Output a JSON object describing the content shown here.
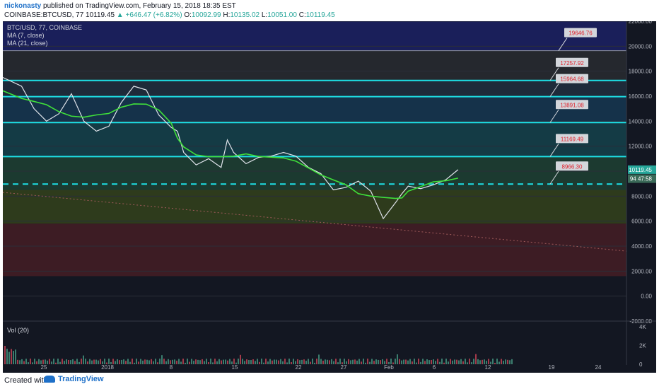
{
  "header": {
    "author": "nickonasty",
    "published": " published on TradingView.com, February 15, 2018 18:35 EST",
    "symbol": "COINBASE:BTCUSD, 77",
    "last": "10119.45",
    "change": "▲ +646.47 (+6.82%)",
    "o_label": "O:",
    "o_val": "10092.99",
    "h_label": "H:",
    "h_val": "10135.02",
    "l_label": "L:",
    "l_val": "10051.00",
    "c_label": "C:",
    "c_val": "10119.45"
  },
  "legend": {
    "title": "BTC/USD, 77, COINBASE",
    "ma7": "MA (7, close)",
    "ma21": "MA (21, close)",
    "vol": "Vol (20)"
  },
  "footer": {
    "created": "Created with",
    "brand": "TradingView"
  },
  "chart_data": {
    "type": "line",
    "title": "BTC/USD, 77, COINBASE",
    "xlabel": "",
    "ylabel": "",
    "ylim": [
      -2000,
      22000
    ],
    "x_ticks": [
      "25",
      "2018",
      "8",
      "15",
      "22",
      "27",
      "Feb",
      "6",
      "12",
      "19",
      "24"
    ],
    "y_ticks": [
      "22000.00",
      "20000.00",
      "18000.00",
      "16000.00",
      "14000.00",
      "12000.00",
      "10000.00",
      "8000.00",
      "6000.00",
      "4000.00",
      "2000.00",
      "0.00",
      "-2000.00"
    ],
    "volume_ticks": [
      "4K",
      "2K",
      "0"
    ],
    "price_series": {
      "name": "BTC/USD",
      "x": [
        0,
        3,
        5,
        7,
        9,
        11,
        13,
        15,
        17,
        19,
        21,
        23,
        25,
        27,
        28,
        29,
        31,
        33,
        35,
        36,
        37,
        39,
        41,
        43,
        45,
        47,
        49,
        51,
        53,
        55,
        57,
        59,
        61,
        63,
        64,
        65,
        67,
        69,
        71,
        73
      ],
      "y": [
        17500,
        16800,
        15000,
        14000,
        14600,
        16200,
        14000,
        13200,
        13600,
        15500,
        16800,
        16500,
        14500,
        13500,
        13200,
        11500,
        10500,
        11000,
        10300,
        12500,
        11500,
        10600,
        11100,
        11200,
        11500,
        11200,
        10300,
        9800,
        8500,
        8700,
        9200,
        8400,
        6200,
        7500,
        8200,
        8800,
        8600,
        8900,
        9300,
        10119
      ]
    },
    "horizontal_levels": [
      {
        "value": 19646.76,
        "label": "19646.76",
        "style": "thin"
      },
      {
        "value": 17257.92,
        "label": "17257.92",
        "style": "solid"
      },
      {
        "value": 15964.68,
        "label": "15964.68",
        "style": "solid"
      },
      {
        "value": 13891.08,
        "label": "13891.08",
        "style": "solid"
      },
      {
        "value": 11169.49,
        "label": "11169.49",
        "style": "solid"
      },
      {
        "value": 8966.3,
        "label": "8966.30",
        "style": "dashed"
      }
    ],
    "bands": [
      {
        "from": 19646.76,
        "to": 22000,
        "color": "#1a1f5a"
      },
      {
        "from": 17257.92,
        "to": 19646.76,
        "color": "#25282e"
      },
      {
        "from": 15964.68,
        "to": 17257.92,
        "color": "#1e2a3a"
      },
      {
        "from": 13891.08,
        "to": 15964.68,
        "color": "#15324a"
      },
      {
        "from": 11169.49,
        "to": 13891.08,
        "color": "#143b45"
      },
      {
        "from": 8500,
        "to": 11169.49,
        "color": "#1c3a30"
      },
      {
        "from": 5800,
        "to": 8500,
        "color": "#2e3b1c"
      },
      {
        "from": 1600,
        "to": 5800,
        "color": "#3d1c24"
      }
    ],
    "price_labels": [
      {
        "value": 10119.45,
        "label": "10119.45"
      },
      {
        "value": 9400,
        "label": "94 47:58"
      }
    ],
    "colors": {
      "price": "#dfe3ea",
      "ma": "#3fe03a",
      "level": "#1ee0e6",
      "level_label_bg": "#d3d6db",
      "level_label_text": "#e0242e",
      "vol_up": "#3b7d6e",
      "vol_down": "#a33a4a"
    }
  }
}
